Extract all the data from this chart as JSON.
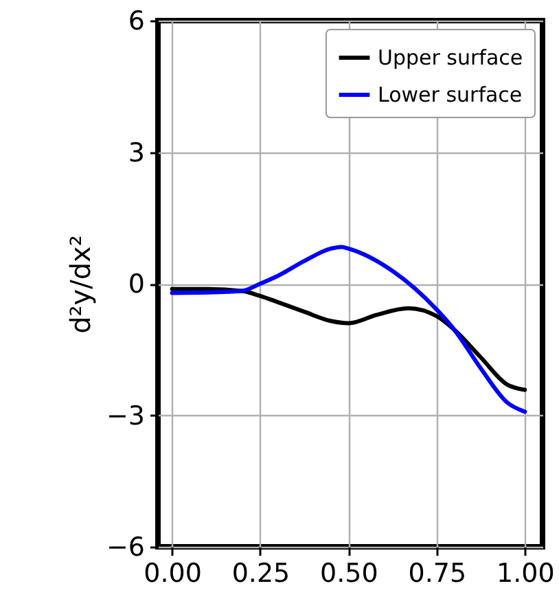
{
  "chart_data": {
    "type": "line",
    "ylabel": "d²y/dx²",
    "xlim": [
      -0.04,
      1.05
    ],
    "ylim": [
      -6,
      6
    ],
    "xticks": [
      {
        "value": 0,
        "label": "0.00"
      },
      {
        "value": 0.25,
        "label": "0.25"
      },
      {
        "value": 0.5,
        "label": "0.50"
      },
      {
        "value": 0.75,
        "label": "0.75"
      },
      {
        "value": 1,
        "label": "1.00"
      }
    ],
    "yticks": [
      {
        "value": -6,
        "label": "−6"
      },
      {
        "value": -3,
        "label": "−3"
      },
      0,
      3,
      6
    ],
    "grid": true,
    "legend": "top right",
    "line_style": "solid",
    "marker": "none",
    "series": [
      {
        "name": "Upper surface",
        "color": "#000000",
        "x": [
          0,
          0.1,
          0.2,
          0.25,
          0.3,
          0.375,
          0.45,
          0.5,
          0.58,
          0.67,
          0.75,
          0.8,
          0.875,
          0.95,
          1.0
        ],
        "values": [
          -0.12,
          -0.12,
          -0.17,
          -0.28,
          -0.42,
          -0.64,
          -0.85,
          -0.9,
          -0.71,
          -0.56,
          -0.74,
          -1.05,
          -1.68,
          -2.3,
          -2.42
        ]
      },
      {
        "name": "Lower surface",
        "color": "#0000ff",
        "x": [
          0,
          0.1,
          0.2,
          0.25,
          0.3,
          0.375,
          0.45,
          0.48,
          0.5,
          0.625,
          0.75,
          0.8,
          0.875,
          0.95,
          1.0
        ],
        "values": [
          -0.21,
          -0.2,
          -0.16,
          0,
          0.18,
          0.52,
          0.8,
          0.84,
          0.8,
          0.29,
          -0.59,
          -1.05,
          -1.93,
          -2.71,
          -2.92
        ]
      }
    ]
  }
}
